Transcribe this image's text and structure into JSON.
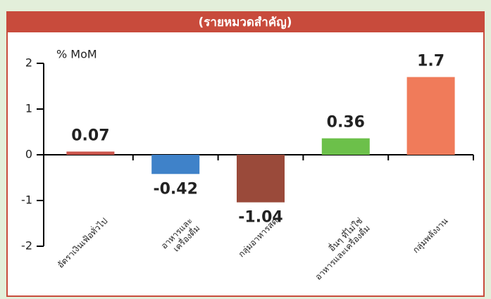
{
  "chart_data": {
    "type": "bar",
    "title": "(รายหมวดสำคัญ)",
    "y_label": "% MoM",
    "categories": [
      [
        "อัตราเงินเฟ้อทั่วไป"
      ],
      [
        "อาหารและ",
        "เครื่องดื่ม"
      ],
      [
        "กลุ่มอาหารสด"
      ],
      [
        "อื่นๆ ที่ไม่ใช่",
        "อาหารและเครื่องดื่ม"
      ],
      [
        "กลุ่มพลังงาน"
      ]
    ],
    "values": [
      0.07,
      -0.42,
      -1.04,
      0.36,
      1.7
    ],
    "colors": [
      "#c9534a",
      "#3f82c9",
      "#9a4a3a",
      "#6cc04a",
      "#f07b5a"
    ],
    "ylim": [
      -2,
      2
    ],
    "yticks": [
      -2,
      -1,
      0,
      1,
      2
    ],
    "grid": false
  }
}
